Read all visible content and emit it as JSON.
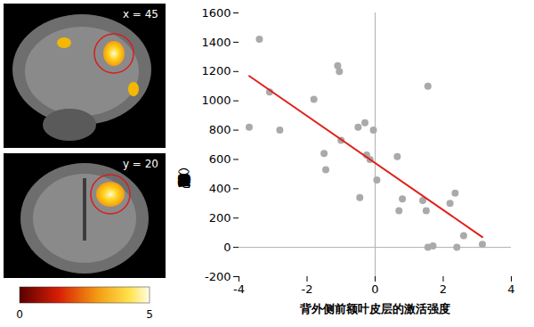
{
  "chart_data": {
    "type": "scatter",
    "x_label": "背外侧前额叶皮层的激活强度",
    "y_label": "攻击行为的持续时间（毫秒）",
    "xlim": [
      -4,
      4
    ],
    "xticks": [
      -4,
      -2,
      0,
      2,
      4
    ],
    "ylim": [
      -200,
      1600
    ],
    "yticks": [
      -200,
      0,
      200,
      400,
      600,
      800,
      1000,
      1200,
      1400,
      1600
    ],
    "grid": false,
    "series": [
      {
        "type": "scatter",
        "color": "#aaaaaa",
        "marker": "circle",
        "x": [
          -3.7,
          -3.4,
          -3.1,
          -2.8,
          -1.8,
          -1.5,
          -1.45,
          -1.1,
          -1.05,
          -1.0,
          -0.5,
          -0.45,
          -0.3,
          -0.25,
          -0.15,
          -0.05,
          0.05,
          0.65,
          0.7,
          0.8,
          1.4,
          1.5,
          1.55,
          1.55,
          1.7,
          2.2,
          2.35,
          2.4,
          2.6,
          3.15
        ],
        "values": [
          820,
          1420,
          1060,
          800,
          1010,
          640,
          530,
          1240,
          1200,
          730,
          820,
          340,
          850,
          630,
          600,
          800,
          460,
          620,
          250,
          330,
          320,
          250,
          1100,
          0,
          10,
          300,
          370,
          0,
          80,
          20
        ]
      },
      {
        "type": "line",
        "color": "#e0201b",
        "line_style": "solid",
        "x": [
          -3.7,
          3.15
        ],
        "values": [
          1170,
          70
        ]
      }
    ]
  },
  "images": [
    {
      "label": "x = 45"
    },
    {
      "label": "y = 20"
    }
  ],
  "color_bar": {
    "range": [
      0,
      5
    ],
    "ticks": [
      0,
      5
    ]
  }
}
